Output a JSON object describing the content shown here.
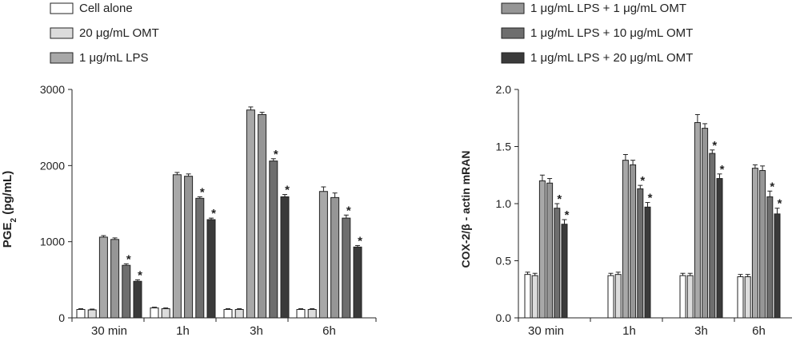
{
  "legend": {
    "items": [
      {
        "label": "Cell alone",
        "color": "#ffffff"
      },
      {
        "label": "20 μg/mL OMT",
        "color": "#dcdcdc"
      },
      {
        "label": "1 μg/mL LPS",
        "color": "#a8a8a8"
      },
      {
        "label": "1 μg/mL LPS + 1 μg/mL OMT",
        "color": "#969696"
      },
      {
        "label": "1 μg/mL LPS + 10 μg/mL OMT",
        "color": "#6e6e6e"
      },
      {
        "label": "1 μg/mL LPS + 20 μg/mL OMT",
        "color": "#3a3a3a"
      }
    ]
  },
  "chart_data": [
    {
      "type": "bar",
      "ylabel": "PGE2 (pg/mL)",
      "ylabel_main": "PGE",
      "ylabel_sub": "2",
      "ylabel_rest": " (pg/mL)",
      "categories": [
        "30 min",
        "1h",
        "3h",
        "6h"
      ],
      "ylim": [
        0,
        3000
      ],
      "yticks": [
        0,
        1000,
        2000,
        3000
      ],
      "ytick_labels": [
        "0",
        "1000",
        "2000",
        "3000"
      ],
      "significance_marker": "*",
      "series": [
        {
          "name": "Cell alone",
          "values": [
            110,
            130,
            110,
            110
          ],
          "errors": [
            10,
            10,
            10,
            10
          ],
          "significant": [
            false,
            false,
            false,
            false
          ]
        },
        {
          "name": "20 μg/mL OMT",
          "values": [
            105,
            120,
            110,
            110
          ],
          "errors": [
            10,
            10,
            10,
            10
          ],
          "significant": [
            false,
            false,
            false,
            false
          ]
        },
        {
          "name": "1 μg/mL LPS",
          "values": [
            1060,
            1880,
            2730,
            1660
          ],
          "errors": [
            20,
            30,
            40,
            60
          ],
          "significant": [
            false,
            false,
            false,
            false
          ]
        },
        {
          "name": "1 μg/mL LPS + 1 μg/mL OMT",
          "values": [
            1030,
            1860,
            2670,
            1580
          ],
          "errors": [
            20,
            30,
            30,
            60
          ],
          "significant": [
            false,
            false,
            false,
            false
          ]
        },
        {
          "name": "1 μg/mL LPS + 10 μg/mL OMT",
          "values": [
            690,
            1570,
            2060,
            1310
          ],
          "errors": [
            20,
            20,
            30,
            40
          ],
          "significant": [
            true,
            true,
            true,
            true
          ]
        },
        {
          "name": "1 μg/mL LPS + 20 μg/mL OMT",
          "values": [
            480,
            1290,
            1590,
            930
          ],
          "errors": [
            20,
            20,
            30,
            20
          ],
          "significant": [
            true,
            true,
            true,
            true
          ]
        }
      ]
    },
    {
      "type": "bar",
      "ylabel": "COX-2/β - actin mRAN",
      "categories": [
        "30 min",
        "1h",
        "3h",
        "6h"
      ],
      "ylim": [
        0,
        2.0
      ],
      "yticks": [
        0,
        0.5,
        1.0,
        1.5,
        2.0
      ],
      "ytick_labels": [
        "0.0",
        "0.5",
        "1.0",
        "1.5",
        "2.0"
      ],
      "significance_marker": "*",
      "series": [
        {
          "name": "Cell alone",
          "values": [
            0.38,
            0.37,
            0.37,
            0.36
          ],
          "errors": [
            0.02,
            0.02,
            0.02,
            0.02
          ],
          "significant": [
            false,
            false,
            false,
            false
          ]
        },
        {
          "name": "20 μg/mL OMT",
          "values": [
            0.37,
            0.38,
            0.37,
            0.36
          ],
          "errors": [
            0.02,
            0.02,
            0.02,
            0.02
          ],
          "significant": [
            false,
            false,
            false,
            false
          ]
        },
        {
          "name": "1 μg/mL LPS",
          "values": [
            1.2,
            1.38,
            1.71,
            1.31
          ],
          "errors": [
            0.05,
            0.05,
            0.07,
            0.03
          ],
          "significant": [
            false,
            false,
            false,
            false
          ]
        },
        {
          "name": "1 μg/mL LPS + 1 μg/mL OMT",
          "values": [
            1.18,
            1.34,
            1.66,
            1.29
          ],
          "errors": [
            0.04,
            0.04,
            0.04,
            0.04
          ],
          "significant": [
            false,
            false,
            false,
            false
          ]
        },
        {
          "name": "1 μg/mL LPS + 10 μg/mL OMT",
          "values": [
            0.96,
            1.13,
            1.44,
            1.06
          ],
          "errors": [
            0.04,
            0.03,
            0.03,
            0.05
          ],
          "significant": [
            true,
            true,
            true,
            true
          ]
        },
        {
          "name": "1 μg/mL LPS + 20 μg/mL OMT",
          "values": [
            0.82,
            0.97,
            1.22,
            0.91
          ],
          "errors": [
            0.04,
            0.04,
            0.04,
            0.05
          ],
          "significant": [
            true,
            true,
            true,
            true
          ]
        }
      ]
    }
  ]
}
